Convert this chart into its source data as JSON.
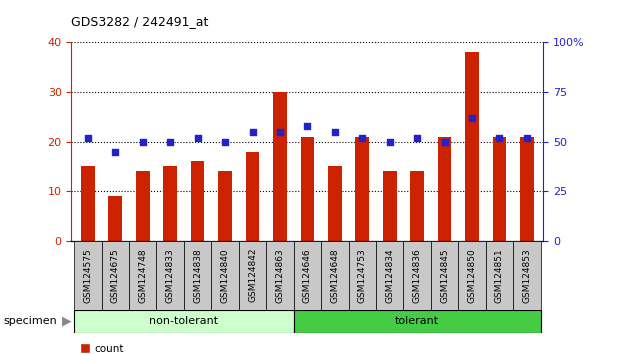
{
  "title": "GDS3282 / 242491_at",
  "categories": [
    "GSM124575",
    "GSM124675",
    "GSM124748",
    "GSM124833",
    "GSM124838",
    "GSM124840",
    "GSM124842",
    "GSM124863",
    "GSM124646",
    "GSM124648",
    "GSM124753",
    "GSM124834",
    "GSM124836",
    "GSM124845",
    "GSM124850",
    "GSM124851",
    "GSM124853"
  ],
  "count_values": [
    15,
    9,
    14,
    15,
    16,
    14,
    18,
    30,
    21,
    15,
    21,
    14,
    14,
    21,
    38,
    21,
    21
  ],
  "percentile_values": [
    52,
    45,
    50,
    50,
    52,
    50,
    55,
    55,
    58,
    55,
    52,
    50,
    52,
    50,
    62,
    52,
    52
  ],
  "non_tolerant_count": 8,
  "tolerant_count": 9,
  "bar_color": "#cc2200",
  "dot_color": "#2222cc",
  "non_tolerant_bg": "#ccffcc",
  "tolerant_bg": "#44cc44",
  "tick_bg": "#c8c8c8",
  "left_ylim": [
    0,
    40
  ],
  "right_ylim": [
    0,
    100
  ],
  "left_yticks": [
    0,
    10,
    20,
    30,
    40
  ],
  "right_yticks": [
    0,
    25,
    50,
    75,
    100
  ],
  "right_yticklabels": [
    "0",
    "25",
    "50",
    "75",
    "100%"
  ],
  "figsize": [
    6.21,
    3.54
  ],
  "dpi": 100
}
